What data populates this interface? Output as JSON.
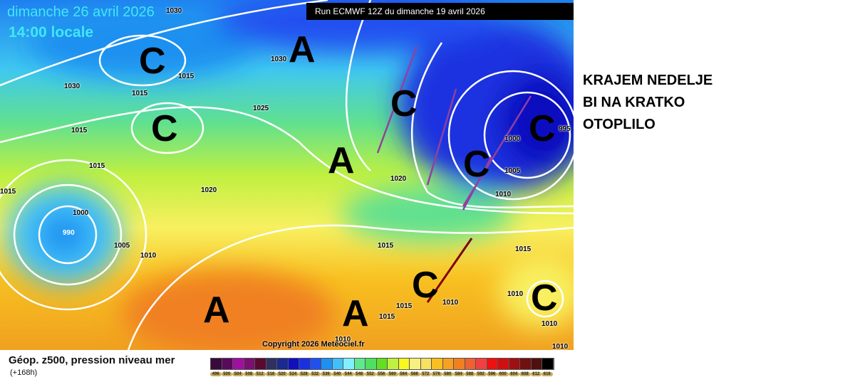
{
  "header": {
    "date": "dimanche 26 avril 2026",
    "time": "14:00 locale",
    "run": "Run ECMWF 12Z du dimanche 19 avril 2026"
  },
  "systems": [
    "A",
    "C",
    "C",
    "A",
    "C",
    "C",
    "C",
    "A",
    "A",
    "C",
    "C"
  ],
  "isobars": [
    "1030",
    "1030",
    "1015",
    "1030",
    "1015",
    "1025",
    "1015",
    "1015",
    "1020",
    "1020",
    "1000",
    "990",
    "1005",
    "1010",
    "1015",
    "1015",
    "1000",
    "1005",
    "1010",
    "1015",
    "1010",
    "1010",
    "1015",
    "1015",
    "995",
    "1010",
    "1010",
    "1010"
  ],
  "copyright": "Copyright 2026 Meteociel.fr",
  "legend": {
    "title": "Géop. z500, pression niveau mer",
    "subtitle": "(+168h)",
    "values": [
      "496",
      "500",
      "504",
      "508",
      "512",
      "516",
      "520",
      "524",
      "528",
      "532",
      "536",
      "540",
      "544",
      "548",
      "552",
      "556",
      "560",
      "564",
      "568",
      "572",
      "576",
      "580",
      "584",
      "588",
      "592",
      "596",
      "600",
      "604",
      "608",
      "612",
      "616"
    ],
    "colors": [
      "#3a0a3a",
      "#5a0a5a",
      "#a010a0",
      "#7a1070",
      "#5a0a30",
      "#303060",
      "#1a2a90",
      "#1010c0",
      "#1a30e0",
      "#2050f0",
      "#1e90f0",
      "#40c0f8",
      "#80f0ff",
      "#60e890",
      "#50e060",
      "#60e020",
      "#c0f040",
      "#f8f820",
      "#f8f080",
      "#f8e060",
      "#f8c020",
      "#f8a020",
      "#f08020",
      "#f06030",
      "#f04040",
      "#f01010",
      "#d01010",
      "#a01010",
      "#701010",
      "#501010",
      "#000000"
    ]
  },
  "annotation": {
    "lines": [
      "KRAJEM NEDELJE",
      "BI NA KRATKO",
      "OTOPLILO"
    ]
  }
}
